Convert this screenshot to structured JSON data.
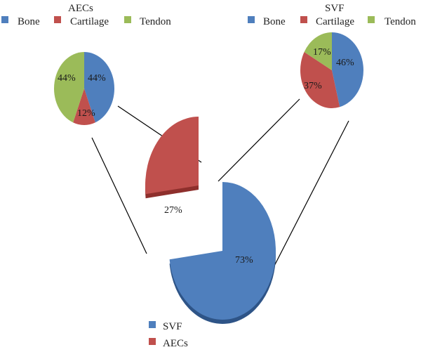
{
  "colors": {
    "bone": "#4f7fbd",
    "cartilage": "#c0504d",
    "tendon": "#9bbb59",
    "svf": "#4f7fbd",
    "aecs": "#c0504d",
    "connector": "#000000"
  },
  "chart_data": [
    {
      "type": "pie",
      "title": "AECs",
      "legend": [
        "Bone",
        "Cartilage",
        "Tendon"
      ],
      "slices": [
        {
          "name": "Bone",
          "value": 44,
          "label": "44%"
        },
        {
          "name": "Cartilage",
          "value": 12,
          "label": "12%"
        },
        {
          "name": "Tendon",
          "value": 44,
          "label": "44%"
        }
      ]
    },
    {
      "type": "pie",
      "title": "SVF",
      "legend": [
        "Bone",
        "Cartilage",
        "Tendon"
      ],
      "slices": [
        {
          "name": "Bone",
          "value": 46,
          "label": "46%"
        },
        {
          "name": "Cartilage",
          "value": 37,
          "label": "37%"
        },
        {
          "name": "Tendon",
          "value": 17,
          "label": "17%"
        }
      ]
    },
    {
      "type": "pie",
      "title": "",
      "legend": [
        "SVF",
        "AECs"
      ],
      "slices": [
        {
          "name": "SVF",
          "value": 73,
          "label": "73%"
        },
        {
          "name": "AECs",
          "value": 27,
          "label": "27%"
        }
      ]
    }
  ]
}
